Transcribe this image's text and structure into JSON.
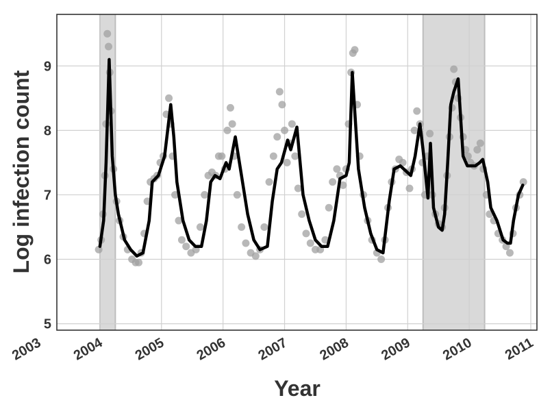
{
  "chart_data": {
    "type": "line",
    "title": "",
    "xlabel": "Year",
    "ylabel": "Log infection count",
    "xlim": [
      2003.3,
      2011.1
    ],
    "ylim": [
      4.9,
      9.8
    ],
    "x_ticks": [
      {
        "value": 2003.0,
        "label": "2003"
      },
      {
        "value": 2004.0,
        "label": "2004"
      },
      {
        "value": 2005.0,
        "label": "2005"
      },
      {
        "value": 2006.0,
        "label": "2006"
      },
      {
        "value": 2007.0,
        "label": "2007"
      },
      {
        "value": 2008.0,
        "label": "2008"
      },
      {
        "value": 2009.0,
        "label": "2009"
      },
      {
        "value": 2010.0,
        "label": "2010"
      },
      {
        "value": 2011.0,
        "label": "2011"
      }
    ],
    "y_ticks": [
      {
        "value": 5,
        "label": "5"
      },
      {
        "value": 6,
        "label": "6"
      },
      {
        "value": 7,
        "label": "7"
      },
      {
        "value": 8,
        "label": "8"
      },
      {
        "value": 9,
        "label": "9"
      }
    ],
    "grid": true,
    "shaded_regions": [
      {
        "x_start": 2004.0,
        "x_end": 2004.25
      },
      {
        "x_start": 2009.25,
        "x_end": 2010.25
      }
    ],
    "colors": {
      "line": "#000000",
      "points": "#a0a0a0",
      "shade": "#d9d9d9",
      "grid": "#d0d0d0",
      "frame": "#333333"
    },
    "series": [
      {
        "kind": "line",
        "x": [
          2004.0,
          2004.06,
          2004.1,
          2004.15,
          2004.2,
          2004.25,
          2004.3,
          2004.35,
          2004.4,
          2004.5,
          2004.6,
          2004.7,
          2004.8,
          2004.85,
          2004.9,
          2004.95,
          2005.05,
          2005.15,
          2005.2,
          2005.25,
          2005.35,
          2005.45,
          2005.55,
          2005.65,
          2005.73,
          2005.8,
          2005.87,
          2005.95,
          2006.05,
          2006.1,
          2006.2,
          2006.3,
          2006.4,
          2006.5,
          2006.6,
          2006.72,
          2006.8,
          2006.88,
          2006.95,
          2007.05,
          2007.1,
          2007.2,
          2007.3,
          2007.4,
          2007.5,
          2007.6,
          2007.7,
          2007.8,
          2007.9,
          2008.0,
          2008.05,
          2008.1,
          2008.2,
          2008.3,
          2008.4,
          2008.5,
          2008.6,
          2008.7,
          2008.78,
          2008.88,
          2009.05,
          2009.12,
          2009.2,
          2009.25,
          2009.33,
          2009.37,
          2009.42,
          2009.5,
          2009.56,
          2009.6,
          2009.65,
          2009.7,
          2009.75,
          2009.82,
          2009.9,
          2009.97,
          2010.1,
          2010.17,
          2010.22,
          2010.3,
          2010.35,
          2010.45,
          2010.55,
          2010.62,
          2010.67,
          2010.72,
          2010.8,
          2010.87
        ],
        "y": [
          6.2,
          6.6,
          7.5,
          9.1,
          7.6,
          7.0,
          6.7,
          6.5,
          6.3,
          6.15,
          6.05,
          6.1,
          6.6,
          7.2,
          7.25,
          7.3,
          7.6,
          8.4,
          7.9,
          7.2,
          6.6,
          6.3,
          6.2,
          6.2,
          6.6,
          7.2,
          7.3,
          7.25,
          7.5,
          7.4,
          7.9,
          7.3,
          6.7,
          6.3,
          6.15,
          6.2,
          6.9,
          7.4,
          7.5,
          7.85,
          7.7,
          8.05,
          7.0,
          6.6,
          6.3,
          6.2,
          6.2,
          6.6,
          7.25,
          7.3,
          7.5,
          8.9,
          7.4,
          6.8,
          6.4,
          6.15,
          6.1,
          6.9,
          7.4,
          7.45,
          7.3,
          7.6,
          8.1,
          7.7,
          6.95,
          7.8,
          6.8,
          6.5,
          6.45,
          6.7,
          7.5,
          8.4,
          8.6,
          8.8,
          7.6,
          7.45,
          7.45,
          7.5,
          7.55,
          7.2,
          6.8,
          6.6,
          6.3,
          6.25,
          6.25,
          6.6,
          7.0,
          7.15
        ]
      },
      {
        "kind": "scatter",
        "x": [
          2003.98,
          2004.02,
          2004.05,
          2004.08,
          2004.1,
          2004.12,
          2004.14,
          2004.16,
          2004.18,
          2004.22,
          2004.27,
          2004.32,
          2004.38,
          2004.45,
          2004.52,
          2004.58,
          2004.63,
          2004.67,
          2004.72,
          2004.77,
          2004.82,
          2004.88,
          2004.93,
          2004.98,
          2005.03,
          2005.08,
          2005.12,
          2005.15,
          2005.18,
          2005.22,
          2005.28,
          2005.33,
          2005.4,
          2005.48,
          2005.56,
          2005.63,
          2005.7,
          2005.76,
          2005.82,
          2005.88,
          2005.93,
          2005.98,
          2006.03,
          2006.07,
          2006.12,
          2006.15,
          2006.18,
          2006.23,
          2006.3,
          2006.37,
          2006.45,
          2006.53,
          2006.6,
          2006.67,
          2006.75,
          2006.82,
          2006.88,
          2006.92,
          2006.96,
          2007.0,
          2007.04,
          2007.08,
          2007.12,
          2007.17,
          2007.22,
          2007.28,
          2007.35,
          2007.42,
          2007.5,
          2007.58,
          2007.66,
          2007.72,
          2007.78,
          2007.85,
          2007.9,
          2007.95,
          2008.0,
          2008.04,
          2008.08,
          2008.11,
          2008.14,
          2008.18,
          2008.22,
          2008.28,
          2008.35,
          2008.42,
          2008.5,
          2008.57,
          2008.63,
          2008.68,
          2008.74,
          2008.8,
          2008.86,
          2008.92,
          2008.98,
          2009.03,
          2009.07,
          2009.11,
          2009.15,
          2009.2,
          2009.24,
          2009.28,
          2009.32,
          2009.36,
          2009.4,
          2009.45,
          2009.5,
          2009.56,
          2009.6,
          2009.64,
          2009.68,
          2009.72,
          2009.75,
          2009.78,
          2009.82,
          2009.86,
          2009.9,
          2009.94,
          2009.98,
          2010.02,
          2010.08,
          2010.13,
          2010.18,
          2010.23,
          2010.28,
          2010.33,
          2010.4,
          2010.47,
          2010.54,
          2010.6,
          2010.66,
          2010.71,
          2010.76,
          2010.82,
          2010.88
        ],
        "y": [
          6.15,
          6.3,
          6.7,
          7.3,
          8.1,
          9.5,
          9.3,
          8.9,
          8.3,
          7.4,
          6.9,
          6.6,
          6.35,
          6.15,
          6.0,
          5.95,
          5.95,
          6.1,
          6.4,
          6.9,
          7.2,
          7.25,
          7.3,
          7.5,
          7.6,
          8.25,
          8.5,
          8.1,
          7.6,
          7.0,
          6.6,
          6.3,
          6.2,
          6.1,
          6.15,
          6.5,
          7.0,
          7.3,
          7.35,
          7.3,
          7.6,
          7.6,
          7.4,
          8.0,
          8.35,
          8.1,
          7.6,
          7.0,
          6.5,
          6.25,
          6.1,
          6.05,
          6.15,
          6.5,
          7.2,
          7.6,
          7.9,
          8.6,
          8.4,
          8.0,
          7.5,
          7.8,
          8.1,
          7.6,
          7.1,
          6.7,
          6.4,
          6.25,
          6.15,
          6.15,
          6.3,
          6.8,
          7.2,
          7.4,
          7.3,
          7.15,
          7.4,
          8.1,
          8.9,
          9.2,
          9.25,
          8.4,
          7.6,
          7.0,
          6.6,
          6.3,
          6.1,
          6.0,
          6.3,
          6.8,
          7.2,
          7.4,
          7.55,
          7.5,
          7.35,
          7.1,
          7.4,
          8.0,
          8.3,
          8.1,
          7.5,
          7.0,
          7.6,
          7.95,
          7.0,
          6.7,
          6.55,
          6.5,
          6.8,
          7.3,
          7.9,
          8.35,
          8.95,
          8.75,
          8.5,
          8.2,
          7.9,
          7.7,
          7.6,
          7.5,
          7.45,
          7.7,
          7.8,
          7.4,
          7.0,
          6.7,
          6.6,
          6.4,
          6.3,
          6.2,
          6.1,
          6.4,
          6.8,
          7.0,
          7.2
        ]
      }
    ]
  }
}
